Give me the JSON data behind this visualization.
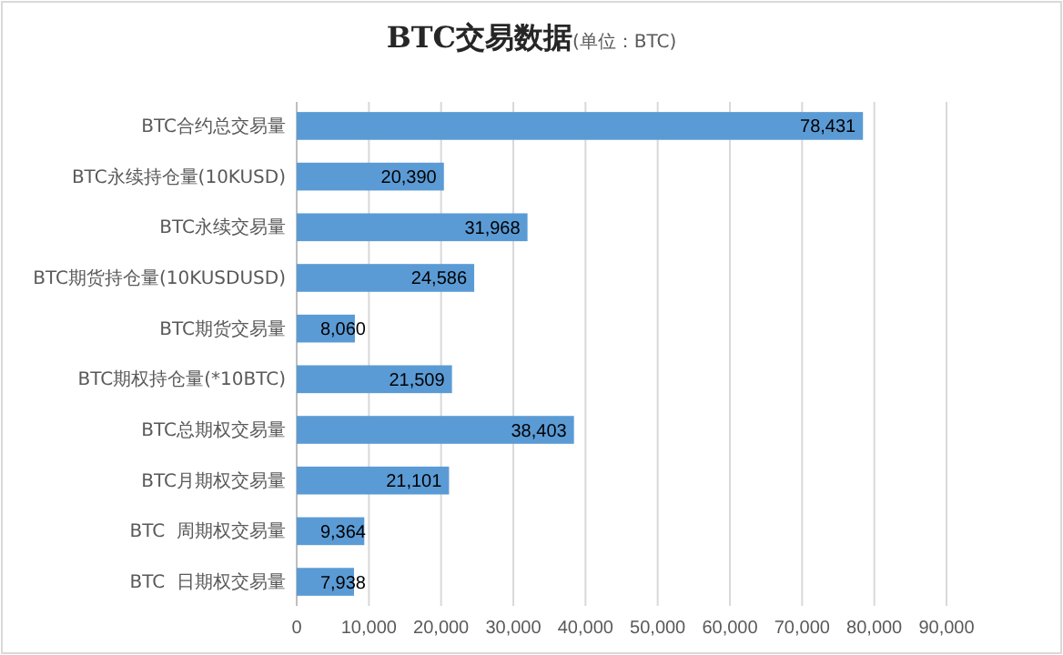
{
  "chart_data": {
    "type": "bar",
    "orientation": "horizontal",
    "title": "BTC交易数据",
    "subtitle": "(单位：BTC)",
    "categories": [
      "BTC合约总交易量",
      "BTC永续持仓量(10KUSD)",
      "BTC永续交易量",
      "BTC期货持仓量(10KUSDUSD)",
      "BTC期货交易量",
      "BTC期权持仓量(*10BTC)",
      "BTC总期权交易量",
      "BTC月期权交易量",
      "BTC  周期权交易量",
      "BTC  日期权交易量"
    ],
    "values": [
      78431,
      20390,
      31968,
      24586,
      8060,
      21509,
      38403,
      21101,
      9364,
      7938
    ],
    "value_labels": [
      "78,431",
      "20,390",
      "31,968",
      "24,586",
      "8,060",
      "21,509",
      "38,403",
      "21,101",
      "9,364",
      "7,938"
    ],
    "color": "#5b9bd5",
    "grid": "x",
    "xlim": [
      0,
      90000
    ],
    "xticks": [
      {
        "value": 0,
        "label": "0"
      },
      {
        "value": 10000,
        "label": "10,000"
      },
      {
        "value": 20000,
        "label": "20,000"
      },
      {
        "value": 30000,
        "label": "30,000"
      },
      {
        "value": 40000,
        "label": "40,000"
      },
      {
        "value": 50000,
        "label": "50,000"
      },
      {
        "value": 60000,
        "label": "60,000"
      },
      {
        "value": 70000,
        "label": "70,000"
      },
      {
        "value": 80000,
        "label": "80,000"
      },
      {
        "value": 90000,
        "label": "90,000"
      }
    ]
  }
}
